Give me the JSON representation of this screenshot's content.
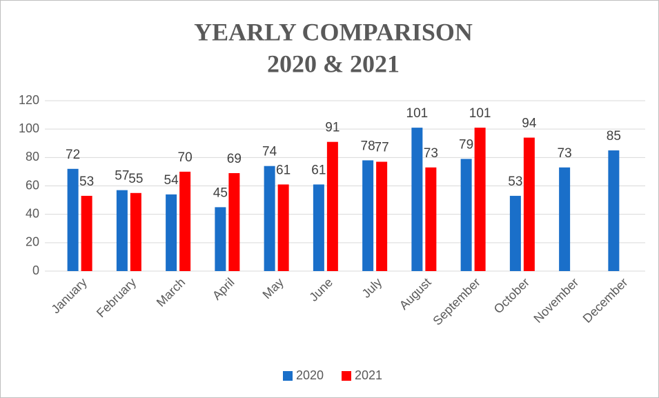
{
  "chart_data": {
    "type": "bar",
    "title": [
      "YEARLY COMPARISON",
      "2020 & 2021"
    ],
    "categories": [
      "January",
      "February",
      "March",
      "April",
      "May",
      "June",
      "July",
      "August",
      "September",
      "October",
      "November",
      "December"
    ],
    "series": [
      {
        "name": "2020",
        "color": "#1a6fc9",
        "values": [
          72,
          57,
          54,
          45,
          74,
          61,
          78,
          101,
          79,
          53,
          73,
          85
        ]
      },
      {
        "name": "2021",
        "color": "#ff0000",
        "values": [
          53,
          55,
          70,
          69,
          61,
          91,
          77,
          73,
          101,
          94,
          null,
          null
        ]
      }
    ],
    "ylim": [
      0,
      120
    ],
    "yticks": [
      0,
      20,
      40,
      60,
      80,
      100,
      120
    ],
    "grid": true,
    "legend": "bottom"
  }
}
